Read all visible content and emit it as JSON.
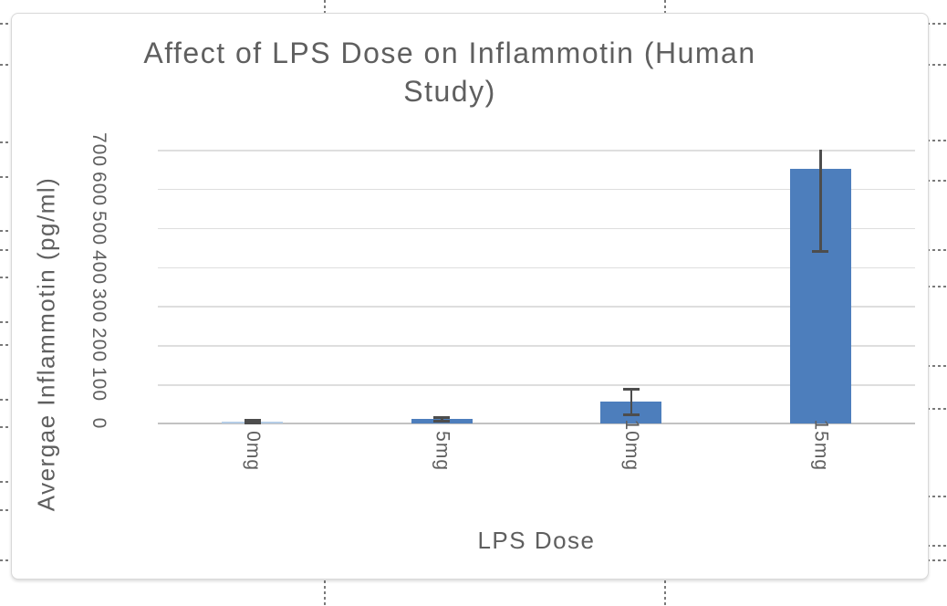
{
  "page": {
    "background_color": "#ffffff"
  },
  "chart_data": {
    "type": "bar",
    "title": "Affect of LPS Dose on Inflammotin (Human Study)",
    "xlabel": "LPS Dose",
    "ylabel": "Avergae Inflammotin (pg/ml)",
    "categories": [
      "0mg",
      "5mg",
      "10mg",
      "15mg"
    ],
    "values": [
      5,
      11,
      55,
      650
    ],
    "errors": [
      3,
      5,
      32,
      210
    ],
    "error_bars_clipped_at_ymax": true,
    "ylim": [
      0,
      700
    ],
    "yticks": [
      0,
      100,
      200,
      300,
      400,
      500,
      600,
      700
    ],
    "grid": "horizontal",
    "has_legend": false,
    "bar_colors": [
      "#b5cde6",
      "#4d7ebc",
      "#4d7ebc",
      "#4d7ebc"
    ],
    "series_color": "#4d7ebc",
    "gridline_color": "#dedede",
    "axis_line_color": "#c2c2c2",
    "error_bar_color": "#4d4d4d",
    "text_color": "#5f5f5f"
  },
  "decor": {
    "guide_color": "#7a7a7a",
    "vertical_dash_x": [
      355,
      728
    ],
    "left_dash_y": [
      25,
      70,
      155,
      193,
      252,
      273,
      303,
      352,
      377,
      437,
      467,
      527,
      558,
      613
    ],
    "right_dash_y": [
      25,
      70,
      153,
      197,
      273,
      313,
      400,
      447,
      543,
      597,
      613
    ]
  }
}
